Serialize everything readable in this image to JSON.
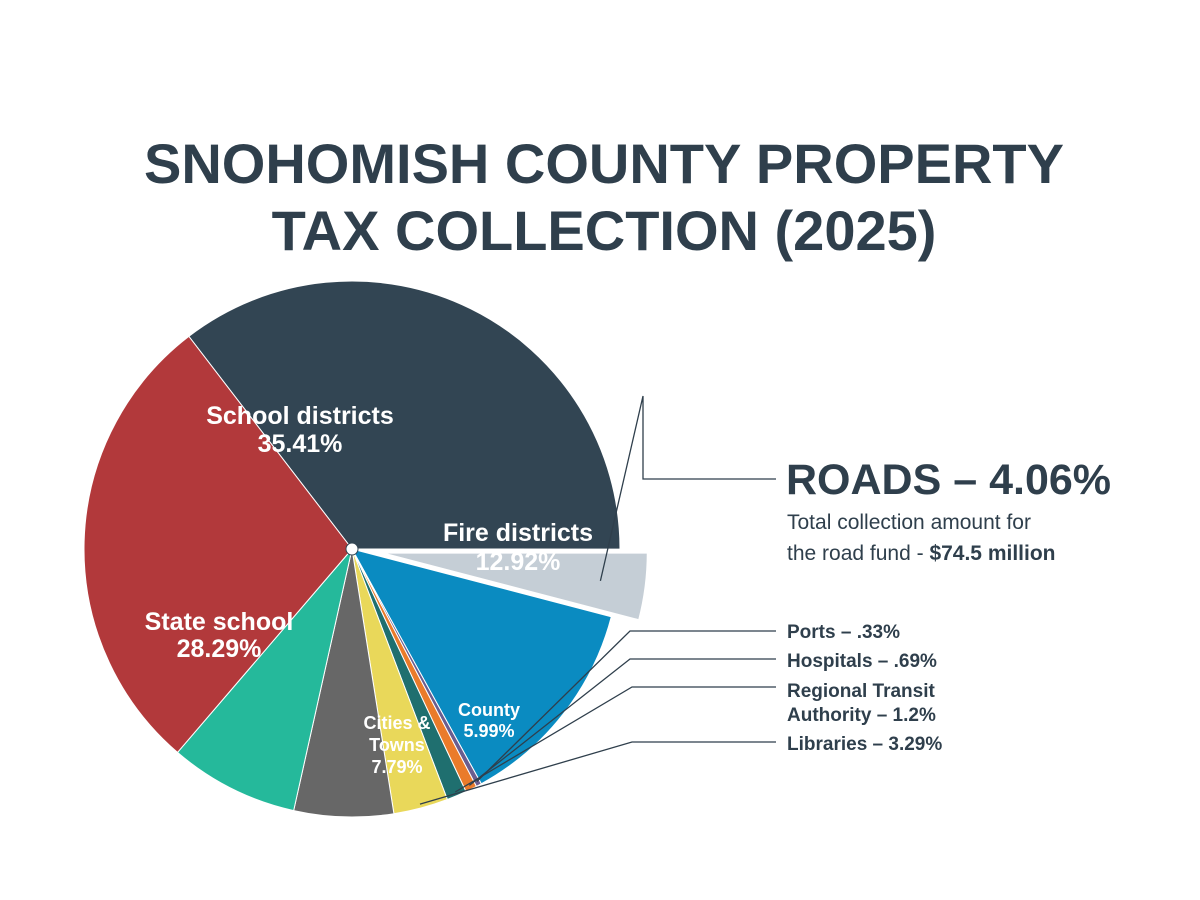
{
  "chart_data": {
    "type": "pie",
    "title_lines": [
      "SNOHOMISH COUNTY PROPERTY",
      "TAX COLLECTION (2025)"
    ],
    "slices": [
      {
        "name": "School districts",
        "value": 35.41,
        "label_lines": [
          "School districts",
          "35.41%"
        ],
        "color": "#324553"
      },
      {
        "name": "Roads",
        "value": 4.06,
        "label_lines": [],
        "color": "#c5ced6",
        "exploded": true
      },
      {
        "name": "Fire districts",
        "value": 12.92,
        "label_lines": [
          "Fire districts",
          "12.92%"
        ],
        "color": "#0a8bc1"
      },
      {
        "name": "Ports",
        "value": 0.33,
        "label_lines": [],
        "color": "#6a5d8f"
      },
      {
        "name": "Hospitals",
        "value": 0.69,
        "label_lines": [],
        "color": "#ea7b2a"
      },
      {
        "name": "Regional Transit Authority",
        "value": 1.2,
        "label_lines": [],
        "color": "#1f6f6f"
      },
      {
        "name": "Libraries",
        "value": 3.29,
        "label_lines": [],
        "color": "#e9d85a"
      },
      {
        "name": "County",
        "value": 5.99,
        "label_lines": [
          "County",
          "5.99%"
        ],
        "color": "#676767"
      },
      {
        "name": "Cities & Towns",
        "value": 7.79,
        "label_lines": [
          "Cities &",
          "Towns",
          "7.79%"
        ],
        "color": "#25b99b"
      },
      {
        "name": "State school",
        "value": 28.29,
        "label_lines": [
          "State school",
          "28.29%"
        ],
        "color": "#b2393b"
      }
    ],
    "callout": {
      "heading": "ROADS – 4.06%",
      "note_line1": "Total collection amount for",
      "note_line2_prefix": "the road fund - ",
      "note_line2_bold": "$74.5 million"
    },
    "side_labels": [
      {
        "slice": "Ports",
        "lines": [
          "Ports – .33%"
        ]
      },
      {
        "slice": "Hospitals",
        "lines": [
          "Hospitals – .69%"
        ]
      },
      {
        "slice": "Regional Transit Authority",
        "lines": [
          "Regional Transit",
          "Authority – 1.2%"
        ]
      },
      {
        "slice": "Libraries",
        "lines": [
          "Libraries – 3.29%"
        ]
      }
    ]
  }
}
